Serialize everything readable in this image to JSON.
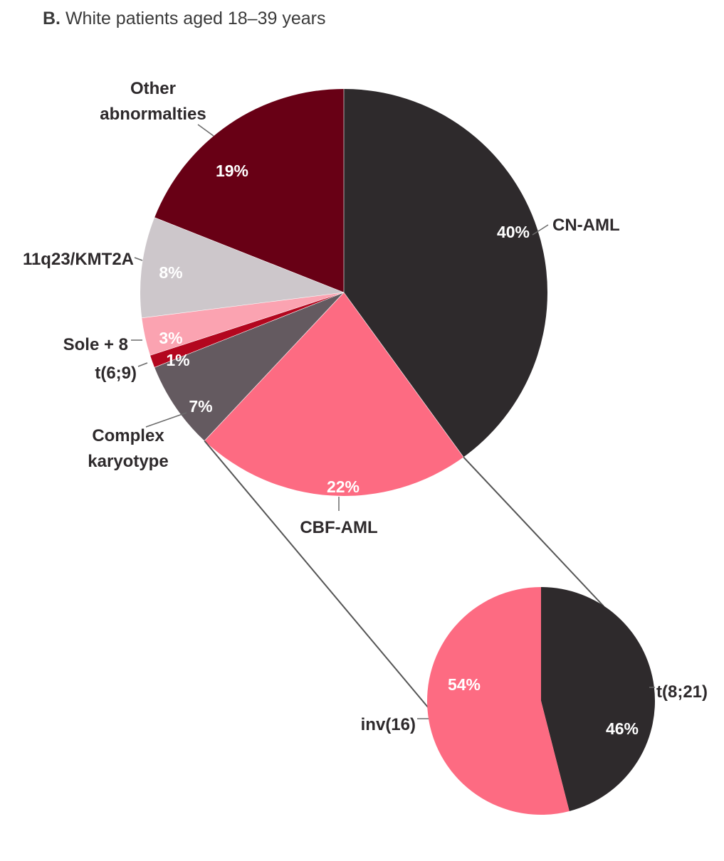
{
  "title": {
    "prefix": "B.",
    "text": "White patients aged 18–39 years"
  },
  "chart_data": [
    {
      "type": "pie",
      "title": "White patients aged 18–39 years",
      "slices": [
        {
          "label": "CN-AML",
          "value": 40,
          "value_label": "40%",
          "color": "#2e2a2c"
        },
        {
          "label": "CBF-AML",
          "value": 22,
          "value_label": "22%",
          "color": "#fd6b82"
        },
        {
          "label": "Complex\nkaryotype",
          "value": 7,
          "value_label": "7%",
          "color": "#645a60"
        },
        {
          "label": "t(6;9)",
          "value": 1,
          "value_label": "1%",
          "color": "#b3071f"
        },
        {
          "label": "Sole + 8",
          "value": 3,
          "value_label": "3%",
          "color": "#fba3b1"
        },
        {
          "label": "11q23/KMT2A",
          "value": 8,
          "value_label": "8%",
          "color": "#cdc7cb"
        },
        {
          "label": "Other\nabnormalties",
          "value": 19,
          "value_label": "19%",
          "color": "#680015"
        }
      ]
    },
    {
      "type": "pie",
      "title": "",
      "breakdown_of": "CBF-AML",
      "slices": [
        {
          "label": "t(8;21)",
          "value": 46,
          "value_label": "46%",
          "color": "#2e2a2c"
        },
        {
          "label": "inv(16)",
          "value": 54,
          "value_label": "54%",
          "color": "#fd6b82"
        }
      ]
    }
  ]
}
